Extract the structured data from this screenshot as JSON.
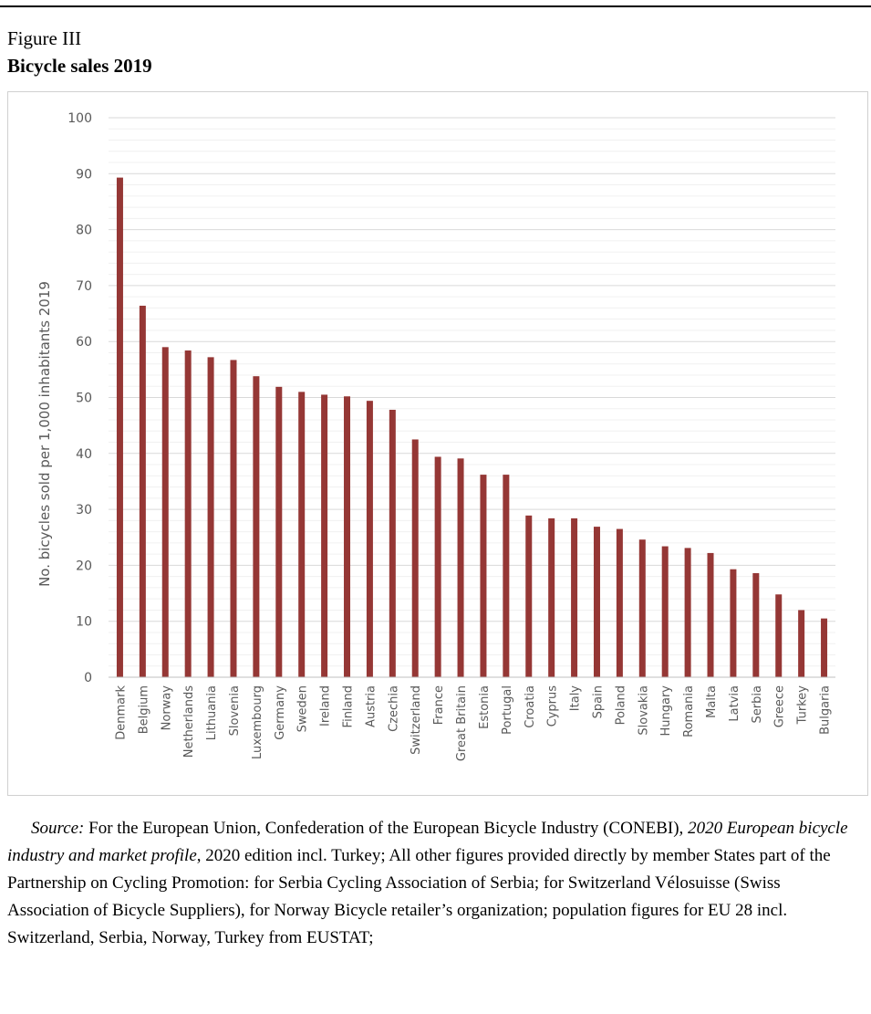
{
  "figure": {
    "label": "Figure III",
    "title": "Bicycle sales 2019"
  },
  "chart_data": {
    "type": "bar",
    "categories": [
      "Denmark",
      "Belgium",
      "Norway",
      "Netherlands",
      "Lithuania",
      "Slovenia",
      "Luxembourg",
      "Germany",
      "Sweden",
      "Ireland",
      "Finland",
      "Austria",
      "Czechia",
      "Switzerland",
      "France",
      "Great Britain",
      "Estonia",
      "Portugal",
      "Croatia",
      "Cyprus",
      "Italy",
      "Spain",
      "Poland",
      "Slovakia",
      "Hungary",
      "Romania",
      "Malta",
      "Latvia",
      "Serbia",
      "Greece",
      "Turkey",
      "Bulgaria"
    ],
    "values": [
      89.3,
      66.4,
      59.0,
      58.4,
      57.2,
      56.7,
      53.8,
      51.9,
      51.0,
      50.5,
      50.2,
      49.4,
      47.8,
      42.5,
      39.4,
      39.1,
      36.2,
      36.2,
      28.9,
      28.4,
      28.4,
      26.9,
      26.5,
      24.6,
      23.4,
      23.1,
      22.2,
      19.3,
      18.6,
      14.8,
      12.0,
      10.5
    ],
    "ylabel": "No. bicycles sold per 1,000 inhabitants 2019",
    "xlabel": "",
    "ylim": [
      0,
      100
    ],
    "yticks": [
      0,
      10,
      20,
      30,
      40,
      50,
      60,
      70,
      80,
      90,
      100
    ],
    "grid": true,
    "bar_color": "#953735"
  },
  "source": {
    "label": "Source:",
    "text1": " For the European Union, Confederation of the European Bicycle Industry (CONEBI), ",
    "publication": "2020 European bicycle industry and market profile",
    "text2": ", 2020 edition incl. Turkey; All other figures provided directly by member States part of the Partnership on Cycling Promotion: for Serbia Cycling Association of Serbia; for Switzerland Vélosuisse (Swiss Association of Bicycle Suppliers), for Norway Bicycle retailer’s organization; population figures for EU 28 incl. Switzerland, Serbia, Norway, Turkey from EUSTAT;"
  }
}
